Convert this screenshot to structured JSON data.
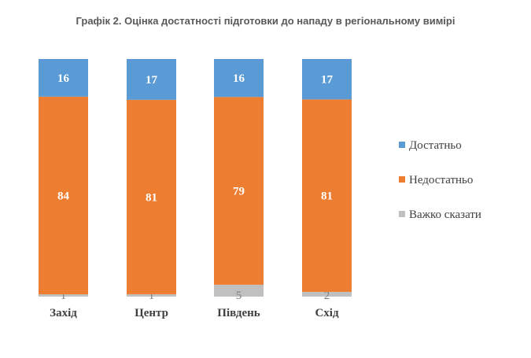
{
  "chart_data": {
    "type": "bar",
    "stacked": true,
    "title": "Графік 2. Оцінка достатності підготовки до нападу в регіональному вимірі",
    "categories": [
      "Захід",
      "Центр",
      "Південь",
      "Схід"
    ],
    "series": [
      {
        "name": "Достатньо",
        "values": [
          16,
          17,
          16,
          17
        ],
        "color": "#5b9bd5"
      },
      {
        "name": "Недостатньо",
        "values": [
          84,
          81,
          79,
          81
        ],
        "color": "#ed7d31"
      },
      {
        "name": "Важко сказати",
        "values": [
          1,
          1,
          5,
          2
        ],
        "color": "#c0c0c0"
      }
    ],
    "legend_position": "right",
    "grid": false,
    "data_labels": true
  }
}
